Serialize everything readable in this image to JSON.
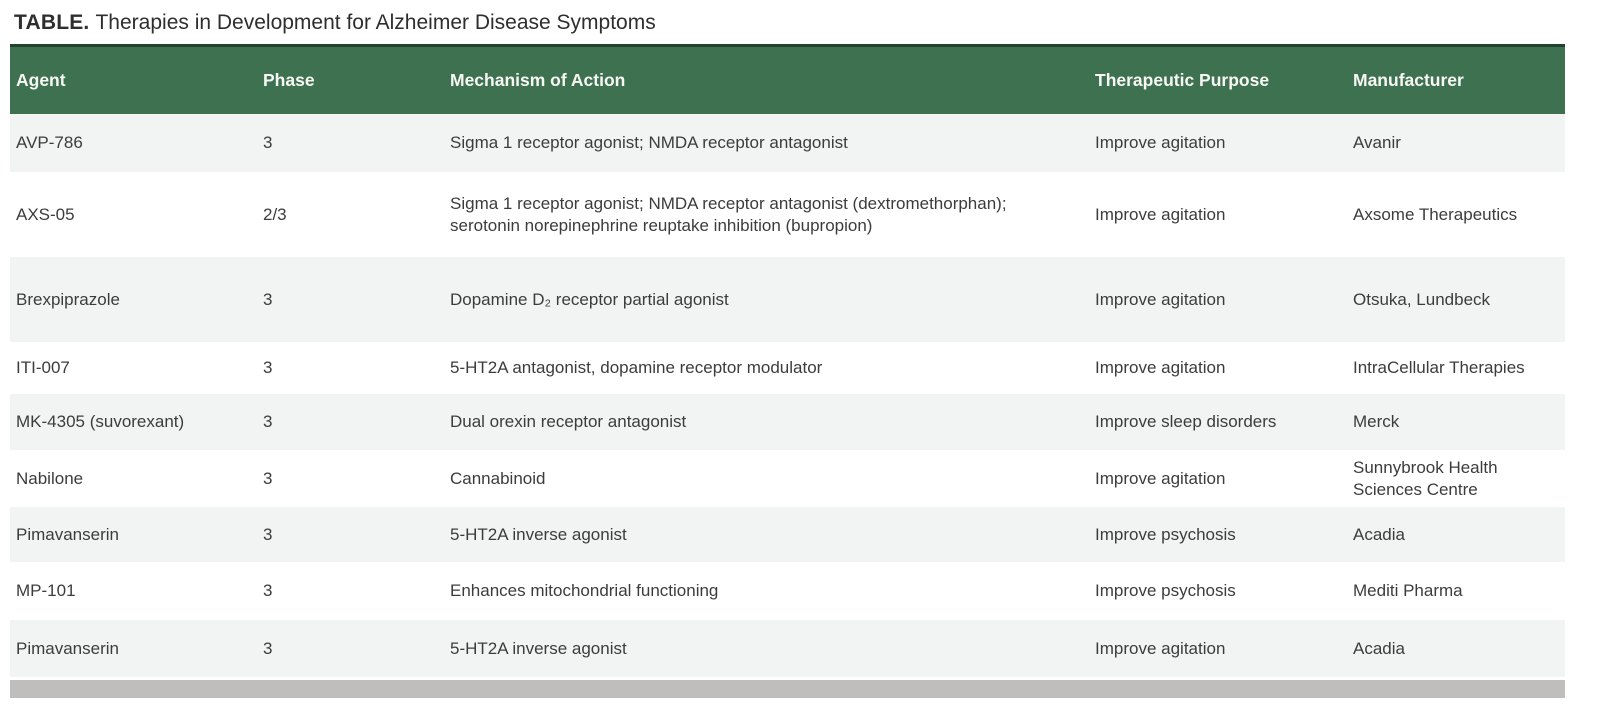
{
  "title": {
    "label": "TABLE.",
    "text": "Therapies in Development for Alzheimer Disease Symptoms"
  },
  "colors": {
    "header_bg": "#3E7150",
    "header_top_border": "#23422E",
    "header_text": "#F7F8F3",
    "row_alt_bg": "#F2F4F3",
    "row_bg": "#FFFFFF",
    "scrollbar": "#C0BEBD",
    "body_text": "#3C3C3C",
    "title_text": "#2E2E2E"
  },
  "table": {
    "columns": [
      "Agent",
      "Phase",
      "Mechanism of Action",
      "Therapeutic Purpose",
      "Manufacturer"
    ],
    "rows": [
      {
        "agent": "AVP-786",
        "phase": "3",
        "mechanism": "Sigma 1 receptor agonist; NMDA receptor antagonist",
        "purpose": "Improve agitation",
        "manufacturer": "Avanir"
      },
      {
        "agent": "AXS-05",
        "phase": "2/3",
        "mechanism": "Sigma 1 receptor agonist; NMDA receptor antagonist (dextromethorphan); serotonin norepinephrine reuptake inhibition (bupropion)",
        "purpose": "Improve agitation",
        "manufacturer": "Axsome Therapeutics"
      },
      {
        "agent": "Brexpiprazole",
        "phase": "3",
        "mechanism": "Dopamine D₂ receptor partial agonist",
        "purpose": "Improve agitation",
        "manufacturer": "Otsuka, Lundbeck"
      },
      {
        "agent": "ITI-007",
        "phase": "3",
        "mechanism": "5-HT2A antagonist, dopamine receptor modulator",
        "purpose": "Improve agitation",
        "manufacturer": "IntraCellular Therapies"
      },
      {
        "agent": "MK-4305 (suvorexant)",
        "phase": "3",
        "mechanism": "Dual orexin receptor antagonist",
        "purpose": "Improve sleep disorders",
        "manufacturer": "Merck"
      },
      {
        "agent": "Nabilone",
        "phase": "3",
        "mechanism": "Cannabinoid",
        "purpose": "Improve agitation",
        "manufacturer": "Sunnybrook Health Sciences Centre"
      },
      {
        "agent": "Pimavanserin",
        "phase": "3",
        "mechanism": "5-HT2A inverse agonist",
        "purpose": "Improve psychosis",
        "manufacturer": "Acadia"
      },
      {
        "agent": "MP-101",
        "phase": "3",
        "mechanism": "Enhances mitochondrial functioning",
        "purpose": "Improve psychosis",
        "manufacturer": "Mediti Pharma"
      },
      {
        "agent": "Pimavanserin",
        "phase": "3",
        "mechanism": "5-HT2A inverse agonist",
        "purpose": "Improve agitation",
        "manufacturer": "Acadia"
      }
    ]
  }
}
